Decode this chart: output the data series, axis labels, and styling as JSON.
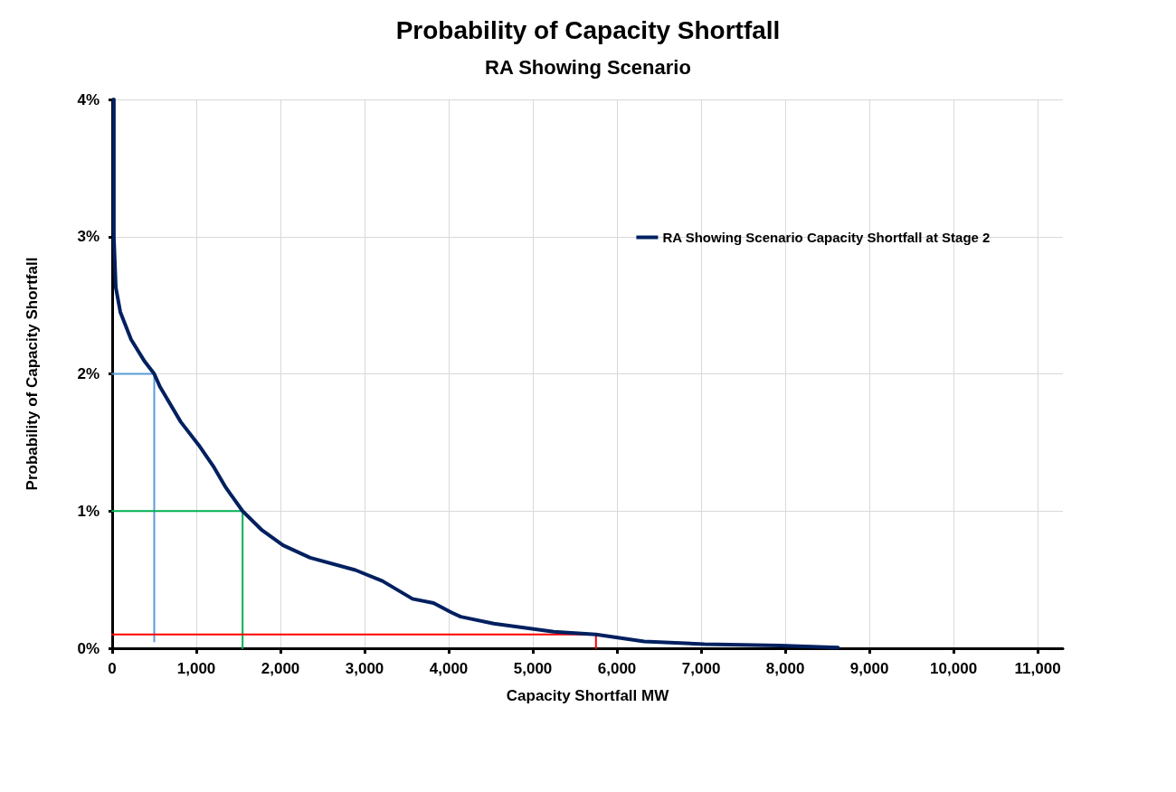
{
  "chart_data": {
    "type": "line",
    "title": "Probability of Capacity Shortfall",
    "subtitle": "RA Showing Scenario",
    "xlabel": "Capacity Shortfall MW",
    "ylabel": "Probability of Capacity Shortfall",
    "xlim": [
      0,
      11300
    ],
    "xticks": [
      {
        "value": 0,
        "label": "0"
      },
      {
        "value": 1000,
        "label": "1,000"
      },
      {
        "value": 2000,
        "label": "2,000"
      },
      {
        "value": 3000,
        "label": "3,000"
      },
      {
        "value": 4000,
        "label": "4,000"
      },
      {
        "value": 5000,
        "label": "5,000"
      },
      {
        "value": 6000,
        "label": "6,000"
      },
      {
        "value": 7000,
        "label": "7,000"
      },
      {
        "value": 8000,
        "label": "8,000"
      },
      {
        "value": 9000,
        "label": "9,000"
      },
      {
        "value": 10000,
        "label": "10,000"
      },
      {
        "value": 11000,
        "label": "11,000"
      }
    ],
    "ylim": [
      0,
      4
    ],
    "yticks": [
      {
        "value": 0,
        "label": "0%"
      },
      {
        "value": 1,
        "label": "1%"
      },
      {
        "value": 2,
        "label": "2%"
      },
      {
        "value": 3,
        "label": "3%"
      },
      {
        "value": 4,
        "label": "4%"
      }
    ],
    "grid": true,
    "legend": "top right",
    "marker": "none",
    "line_style": "solid",
    "series": [
      {
        "name": "RA Showing Scenario Capacity Shortfall at Stage 2",
        "color": "#002060",
        "x": [
          20,
          20,
          43,
          97,
          225,
          386,
          500,
          565,
          815,
          1030,
          1209,
          1352,
          1550,
          1781,
          2031,
          2353,
          2890,
          3212,
          3570,
          3820,
          4034,
          4142,
          4535,
          5250,
          5750,
          6323,
          7039,
          7932,
          8627
        ],
        "values": [
          4,
          3,
          2.63,
          2.45,
          2.25,
          2.09,
          2,
          1.91,
          1.65,
          1.48,
          1.32,
          1.17,
          1,
          0.86,
          0.75,
          0.66,
          0.57,
          0.49,
          0.36,
          0.33,
          0.26,
          0.23,
          0.18,
          0.12,
          0.1,
          0.05,
          0.03,
          0.02,
          0.005
        ]
      },
      {
        "color": "#5b9bd5",
        "x": [
          0,
          500,
          500
        ],
        "values": [
          2,
          2,
          0.05
        ]
      },
      {
        "color": "#00b050",
        "x": [
          0,
          1550,
          1550
        ],
        "values": [
          1,
          1,
          0
        ]
      },
      {
        "color": "#ff0000",
        "x": [
          0,
          5750,
          5750
        ],
        "values": [
          0.1,
          0.1,
          0
        ]
      }
    ]
  }
}
